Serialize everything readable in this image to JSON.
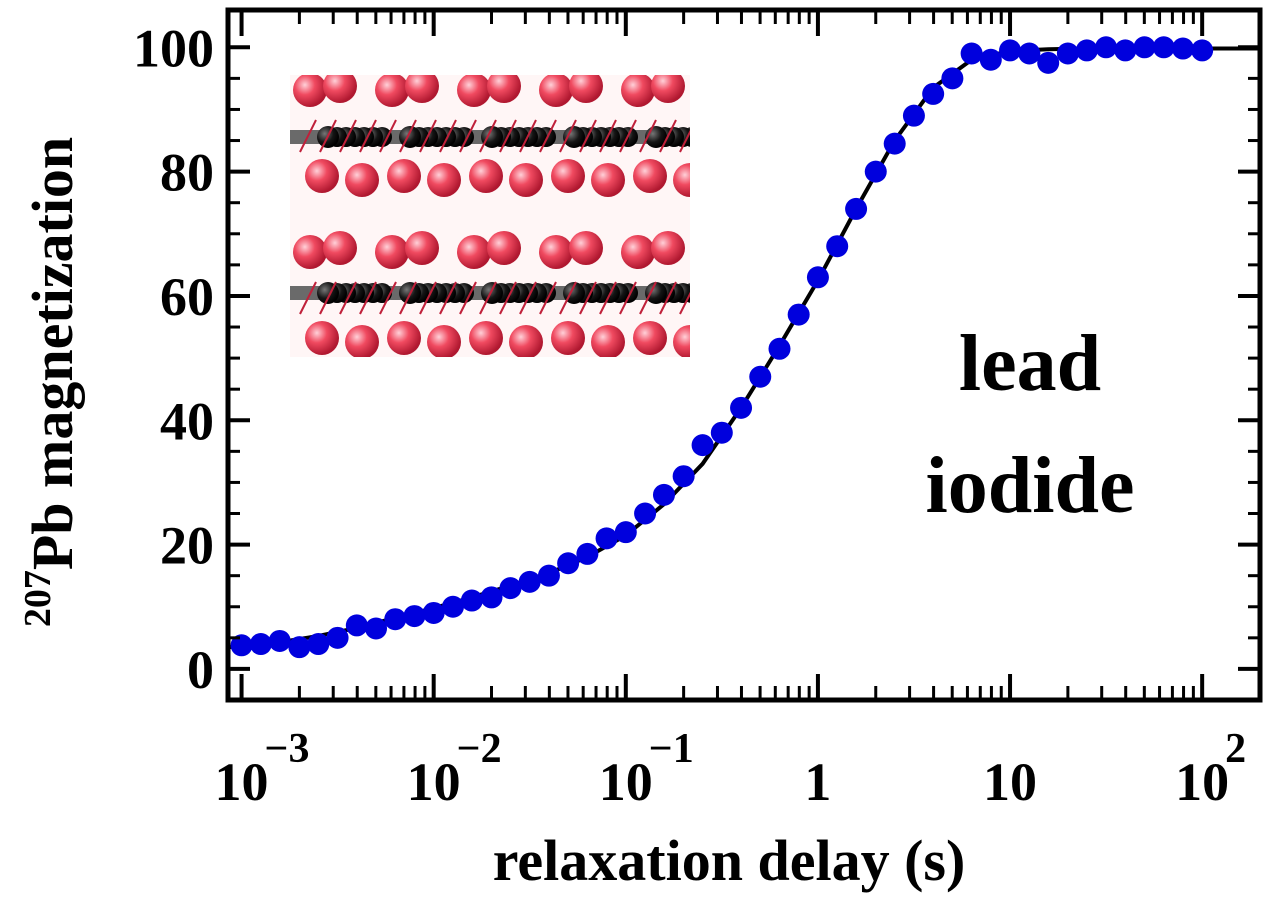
{
  "chart_data": {
    "type": "scatter",
    "xlabel": "relaxation delay (s)",
    "ylabel_super": "207",
    "ylabel_main": "Pb magnetization",
    "x_scale": "log",
    "xlim": [
      0.00085,
      200
    ],
    "ylim": [
      -5,
      106
    ],
    "y_ticks": [
      0,
      20,
      40,
      60,
      80,
      100
    ],
    "x_ticks": [
      {
        "value": 0.001,
        "base": "10",
        "exp": "−3"
      },
      {
        "value": 0.01,
        "base": "10",
        "exp": "−2"
      },
      {
        "value": 0.1,
        "base": "10",
        "exp": "−1"
      },
      {
        "value": 1,
        "base": "1",
        "exp": ""
      },
      {
        "value": 10,
        "base": "10",
        "exp": ""
      },
      {
        "value": 100,
        "base": "10",
        "exp": "2"
      }
    ],
    "annotation_lines": [
      "lead",
      "iodide"
    ],
    "grid": false,
    "colors": {
      "points": "#0000dd",
      "fit": "#000000"
    },
    "inset": "lead iodide layered crystal structure image",
    "series": [
      {
        "kind": "points",
        "x": [
          0.001,
          0.00126,
          0.00158,
          0.002,
          0.00251,
          0.00316,
          0.00398,
          0.00501,
          0.00631,
          0.00794,
          0.01,
          0.0126,
          0.0158,
          0.02,
          0.0251,
          0.0316,
          0.0398,
          0.0501,
          0.0631,
          0.0794,
          0.1,
          0.126,
          0.158,
          0.2,
          0.251,
          0.316,
          0.398,
          0.501,
          0.631,
          0.794,
          1.0,
          1.26,
          1.58,
          2.0,
          2.51,
          3.16,
          3.98,
          5.01,
          6.31,
          7.94,
          10.0,
          12.6,
          15.8,
          20.0,
          25.1,
          31.6,
          39.8,
          50.1,
          63.1,
          79.4,
          100
        ],
        "y": [
          3.8,
          4.0,
          4.5,
          3.5,
          4.0,
          5.0,
          7.0,
          6.5,
          8.0,
          8.5,
          9.0,
          10.0,
          11.0,
          11.5,
          13.0,
          14.0,
          15.0,
          17.0,
          18.5,
          21.0,
          22.0,
          25.0,
          28.0,
          31.0,
          36.0,
          38.0,
          42.0,
          47.0,
          51.5,
          57.0,
          63.0,
          68.0,
          74.0,
          80.0,
          84.5,
          89.0,
          92.5,
          95.0,
          99.0,
          98.0,
          99.5,
          99.0,
          97.5,
          99.0,
          99.5,
          100.0,
          99.5,
          100.0,
          100.0,
          99.8,
          99.5
        ]
      },
      {
        "kind": "fit",
        "x": [
          0.00085,
          0.001,
          0.00158,
          0.00251,
          0.00398,
          0.00631,
          0.01,
          0.0158,
          0.0251,
          0.0398,
          0.0631,
          0.1,
          0.158,
          0.251,
          0.398,
          0.631,
          1.0,
          1.58,
          2.51,
          3.98,
          6.31,
          10.0,
          15.8,
          25.1,
          39.8,
          63.1,
          100,
          200
        ],
        "y": [
          3.5,
          3.7,
          4.3,
          5.3,
          6.6,
          8.2,
          9.8,
          11.5,
          13.4,
          15.4,
          18.0,
          21.5,
          26.5,
          33.0,
          42.0,
          52.0,
          62.5,
          74.0,
          85.0,
          93.5,
          98.0,
          99.4,
          99.7,
          99.8,
          99.8,
          99.8,
          99.8,
          99.8
        ]
      }
    ]
  }
}
